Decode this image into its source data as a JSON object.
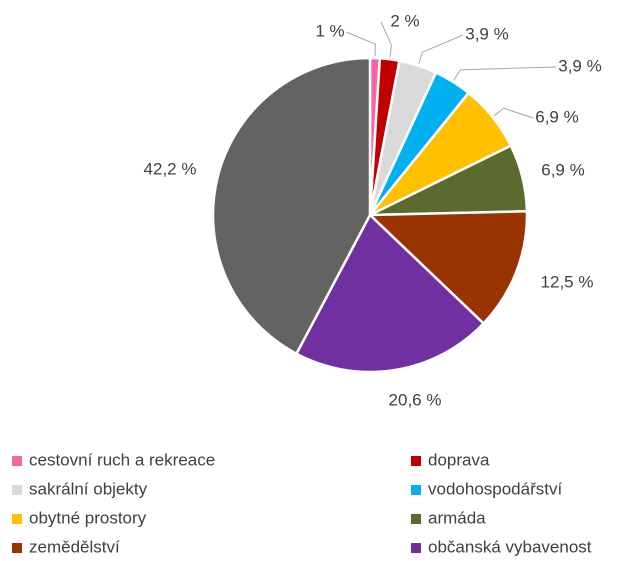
{
  "chart_data": {
    "type": "pie",
    "categories": [
      "cestovní ruch a rekreace",
      "doprava",
      "sakrální objekty",
      "vodohospodářství",
      "obytné prostory",
      "armáda",
      "zemědělství",
      "občanská vybavenost",
      null
    ],
    "values": [
      1,
      2,
      3.9,
      3.9,
      6.9,
      6.9,
      12.5,
      20.6,
      42.2
    ],
    "value_labels": [
      "1 %",
      "2 %",
      "3,9 %",
      "3,9 %",
      "6,9 %",
      "6,9 %",
      "12,5 %",
      "20,6 %",
      "42,2 %"
    ],
    "colors": [
      "#f5659f",
      "#c00000",
      "#d9d9d9",
      "#00b0f0",
      "#ffc000",
      "#5b6b2d",
      "#993300",
      "#7030a0",
      "#636363"
    ],
    "legend": "bottom"
  }
}
